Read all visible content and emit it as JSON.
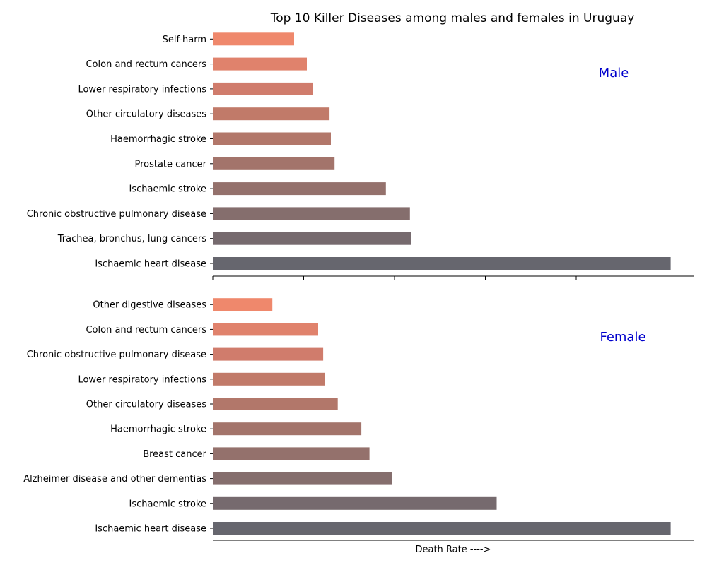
{
  "chart_data": {
    "type": "bar",
    "orientation": "horizontal",
    "title": "Top 10 Killer Diseases among males and females in Uruguay",
    "xlabel": "Death Rate ---->",
    "xlim": [
      0,
      106
    ],
    "grid": false,
    "panels": [
      {
        "label": "Male",
        "categories": [
          "Ischaemic heart disease",
          "Trachea, bronchus, lung cancers",
          "Chronic obstructive pulmonary disease",
          "Ischaemic stroke",
          "Prostate cancer",
          "Haemorrhagic stroke",
          "Other circulatory diseases",
          "Lower respiratory infections",
          "Colon and rectum cancers",
          "Self-harm"
        ],
        "values": [
          100.8,
          43.7,
          43.4,
          38.1,
          26.8,
          26.0,
          25.7,
          22.1,
          20.7,
          17.9
        ],
        "colors": [
          "#66666e",
          "#766a6e",
          "#856e6d",
          "#94716c",
          "#a3746b",
          "#b2776a",
          "#c17a69",
          "#d07c6c",
          "#e0826c",
          "#ef886c"
        ]
      },
      {
        "label": "Female",
        "categories": [
          "Ischaemic heart disease",
          "Ischaemic stroke",
          "Alzheimer disease and other dementias",
          "Breast cancer",
          "Haemorrhagic stroke",
          "Other circulatory diseases",
          "Lower respiratory infections",
          "Chronic obstructive pulmonary disease",
          "Colon and rectum cancers",
          "Other digestive diseases"
        ],
        "values": [
          100.8,
          62.5,
          39.5,
          34.5,
          32.7,
          27.5,
          24.7,
          24.3,
          23.2,
          13.1
        ],
        "colors": [
          "#66666e",
          "#766a6e",
          "#856e6d",
          "#94716c",
          "#a3746b",
          "#b2776a",
          "#c17a69",
          "#d07c6c",
          "#e0826c",
          "#ef886c"
        ]
      }
    ]
  }
}
